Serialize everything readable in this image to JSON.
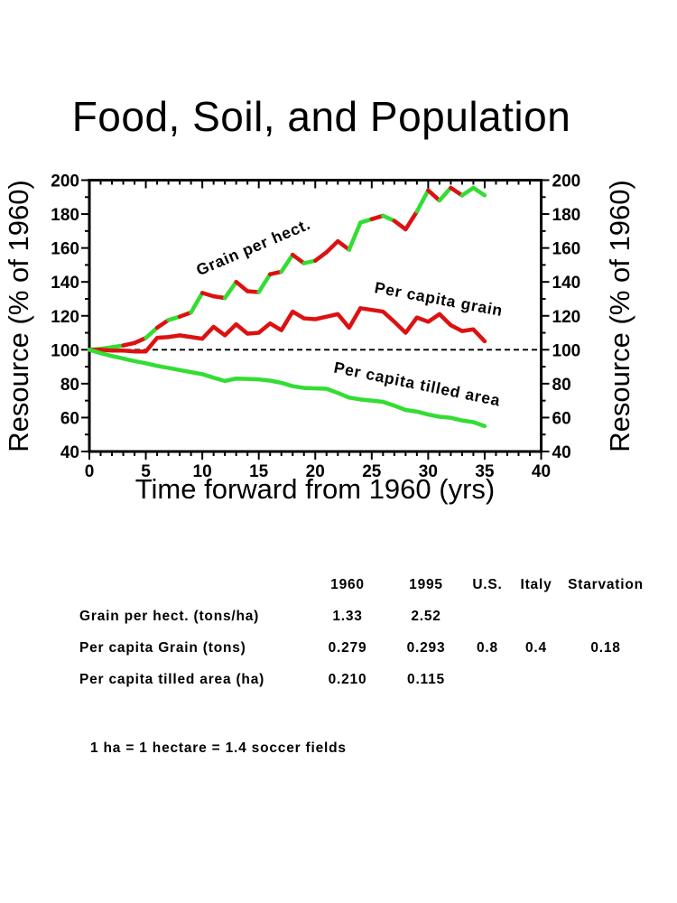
{
  "page": {
    "title": "Food, Soil, and Population"
  },
  "chart_data": {
    "type": "line",
    "title": "",
    "xlabel": "Time forward from 1960 (yrs)",
    "ylabel_left": "Resource (% of 1960)",
    "ylabel_right": "Resource (% of 1960)",
    "xlim": [
      0,
      40
    ],
    "ylim": [
      40,
      200
    ],
    "x_major_ticks": [
      0,
      5,
      10,
      15,
      20,
      25,
      30,
      35,
      40
    ],
    "y_major_ticks": [
      40,
      60,
      80,
      100,
      120,
      140,
      160,
      180,
      200
    ],
    "x_minor_step": 1,
    "y_minor_step": 10,
    "grid": false,
    "legend": "inline rotated labels on lines",
    "reference_line": {
      "y": 100,
      "style": "dashed",
      "color": "#000000"
    },
    "colors": {
      "red": "#dd1111",
      "green": "#33dd33"
    },
    "x_years": [
      0,
      1,
      2,
      3,
      4,
      5,
      6,
      7,
      8,
      9,
      10,
      11,
      12,
      13,
      14,
      15,
      16,
      17,
      18,
      19,
      20,
      21,
      22,
      23,
      24,
      25,
      26,
      27,
      28,
      29,
      30,
      31,
      32,
      33,
      34,
      35
    ],
    "series": [
      {
        "name": "Grain per hect.",
        "values": [
          100,
          100.5,
          101.5,
          102.5,
          104,
          107,
          113,
          117.5,
          119.5,
          122,
          133.5,
          131.5,
          130.5,
          140,
          134.5,
          134,
          144.5,
          146,
          156,
          151,
          152.5,
          157.5,
          164,
          159,
          175,
          177,
          179,
          176,
          171,
          181.5,
          194,
          188,
          195.5,
          191,
          195.5,
          191
        ],
        "segment_colors": [
          "green",
          "green",
          "green",
          "red",
          "red",
          "green",
          "red",
          "green",
          "red",
          "green",
          "red",
          "red",
          "green",
          "red",
          "red",
          "green",
          "red",
          "green",
          "red",
          "green",
          "red",
          "red",
          "red",
          "green",
          "green",
          "red",
          "green",
          "red",
          "red",
          "green",
          "red",
          "green",
          "red",
          "green",
          "green"
        ]
      },
      {
        "name": "Per capita grain",
        "color": "red",
        "values": [
          100,
          100,
          99.5,
          99.5,
          99,
          99,
          107,
          107.5,
          108.5,
          107.5,
          106.5,
          113.5,
          108.5,
          115,
          109.5,
          110,
          115.5,
          111.5,
          122.5,
          118.5,
          118,
          119.5,
          121,
          113,
          124.5,
          123.5,
          122.5,
          116.5,
          110,
          119,
          116.5,
          121,
          114.5,
          111,
          112,
          105
        ]
      },
      {
        "name": "Per capita tilled area",
        "color": "green",
        "values": [
          100,
          98,
          96.3,
          94.8,
          93.3,
          92,
          90.5,
          89.3,
          88,
          86.8,
          85.6,
          83.5,
          81.6,
          83,
          82.8,
          82.5,
          81.8,
          80.5,
          78.5,
          77.5,
          77.2,
          77,
          74.5,
          71.8,
          70.7,
          70,
          69.3,
          67,
          64.5,
          63.5,
          61.8,
          60.5,
          59.9,
          58.3,
          57.3,
          55
        ]
      }
    ]
  },
  "table": {
    "headers": [
      "",
      "1960",
      "1995",
      "U.S.",
      "Italy",
      "Starvation"
    ],
    "rows": [
      [
        "Grain per hect. (tons/ha)",
        "1.33",
        "2.52",
        "",
        "",
        ""
      ],
      [
        "Per capita Grain (tons)",
        "0.279",
        "0.293",
        "0.8",
        "0.4",
        "0.18"
      ],
      [
        "Per capita tilled area (ha)",
        "0.210",
        "0.115",
        "",
        "",
        ""
      ]
    ]
  },
  "note": {
    "text": "1 ha = 1 hectare = 1.4 soccer fields"
  }
}
